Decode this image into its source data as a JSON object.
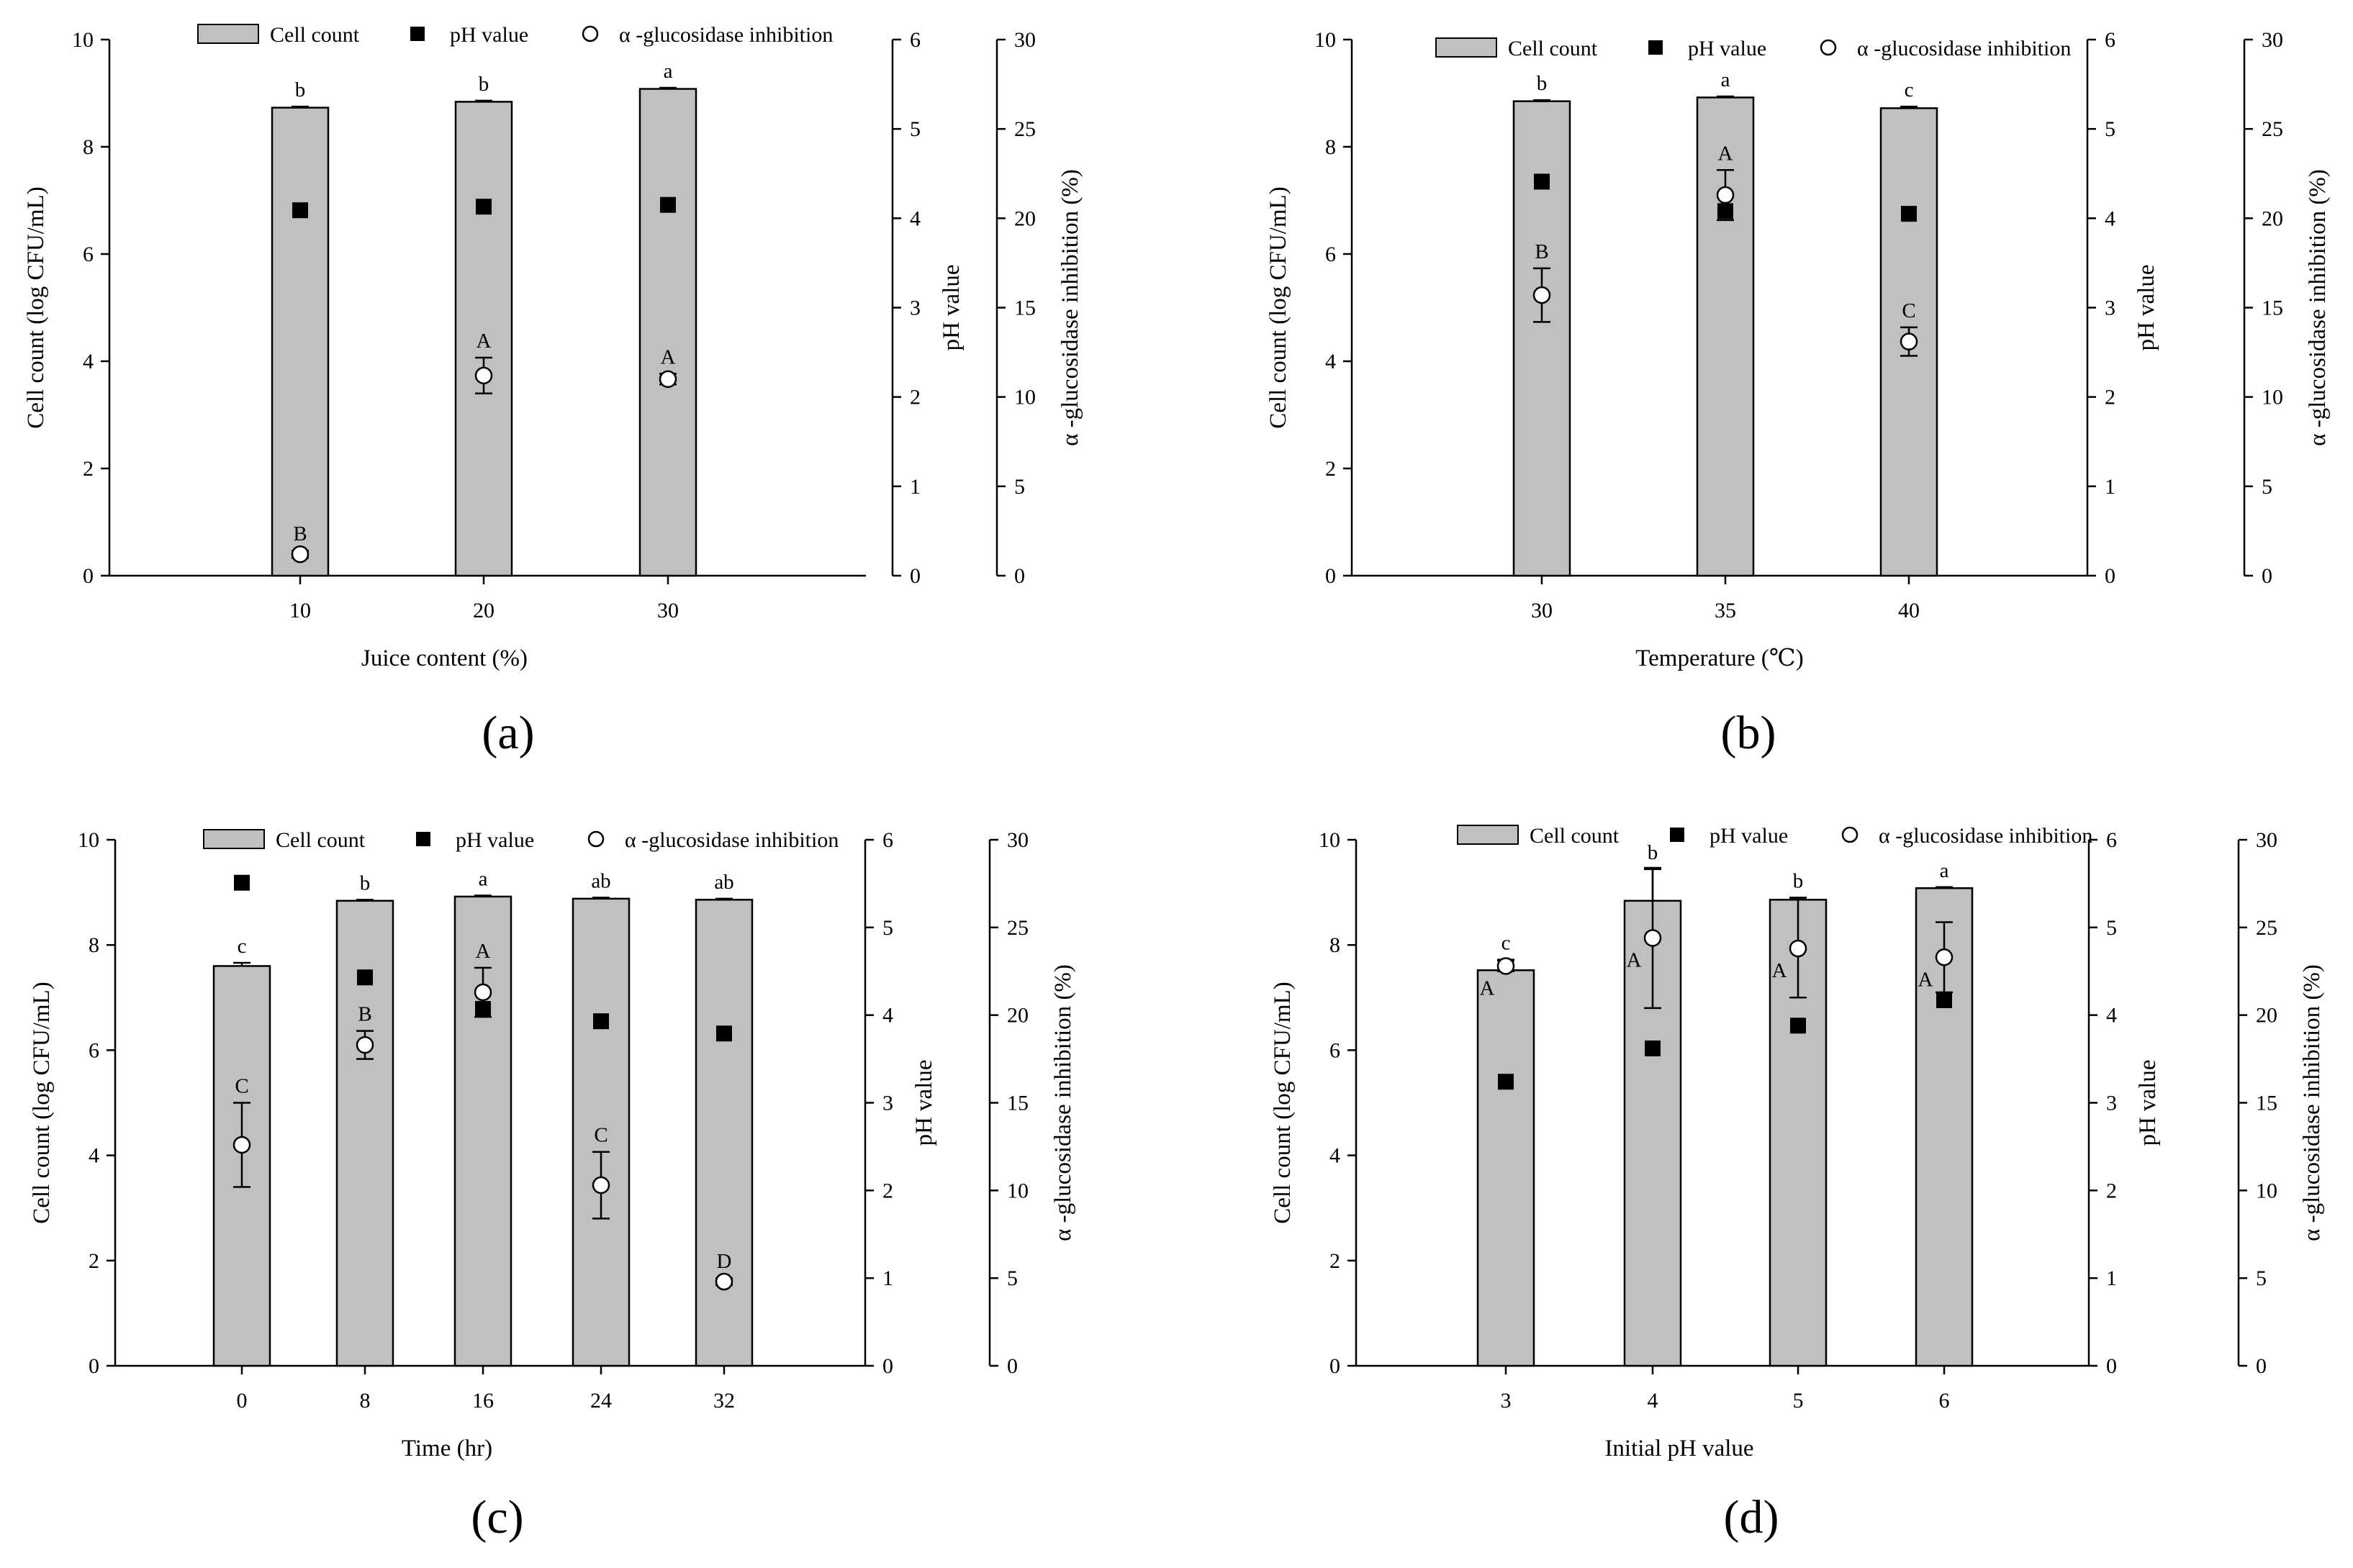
{
  "figure": {
    "legend": {
      "bar": "Cell count",
      "ph": "pH value",
      "inhibition": "α -glucosidase inhibition"
    },
    "colors": {
      "bar_fill": "#c0c0c0",
      "bar_stroke": "#000000",
      "ph_marker": "#000000",
      "inhibition_marker_fill": "#ffffff"
    }
  },
  "chart_data": [
    {
      "type": "bar",
      "panel": "(a)",
      "xlabel": "Juice content (%)",
      "ylabel_left": "Cell count (log CFU/mL)",
      "ylabel_right_inner": "pH value",
      "ylabel_right_outer": "α -glucosidase inhibition (%)",
      "categories": [
        "10",
        "20",
        "30"
      ],
      "ylim_left": [
        0,
        10
      ],
      "yticks_left": [
        "0",
        "2",
        "4",
        "6",
        "8",
        "10"
      ],
      "ylim_ph": [
        0,
        6
      ],
      "yticks_ph": [
        "0",
        "1",
        "2",
        "3",
        "4",
        "5",
        "6"
      ],
      "ylim_inhibition": [
        0,
        30
      ],
      "yticks_inhibition": [
        "0",
        "5",
        "10",
        "15",
        "20",
        "25",
        "30"
      ],
      "series": [
        {
          "name": "Cell count",
          "kind": "bar",
          "axis": "left",
          "values": [
            8.73,
            8.84,
            9.08
          ],
          "errors": [
            0.02,
            0.02,
            0.02
          ],
          "labels": [
            "b",
            "b",
            "a"
          ]
        },
        {
          "name": "pH value",
          "kind": "square",
          "axis": "ph",
          "values": [
            4.09,
            4.13,
            4.15
          ],
          "errors": [
            0.02,
            0.02,
            0.02
          ]
        },
        {
          "name": "α -glucosidase inhibition",
          "kind": "circle",
          "axis": "inhibition",
          "values": [
            1.2,
            11.2,
            11.0
          ],
          "errors": [
            0.2,
            1.0,
            0.3
          ],
          "labels": [
            "B",
            "A",
            "A"
          ]
        }
      ]
    },
    {
      "type": "bar",
      "panel": "(b)",
      "xlabel": "Temperature (℃)",
      "ylabel_left": "Cell count (log CFU/mL)",
      "ylabel_right_inner": "pH value",
      "ylabel_right_outer": "α -glucosidase inhibition (%)",
      "categories": [
        "30",
        "35",
        "40"
      ],
      "ylim_left": [
        0,
        10
      ],
      "yticks_left": [
        "0",
        "2",
        "4",
        "6",
        "8",
        "10"
      ],
      "ylim_ph": [
        0,
        6
      ],
      "yticks_ph": [
        "0",
        "1",
        "2",
        "3",
        "4",
        "5",
        "6"
      ],
      "ylim_inhibition": [
        0,
        30
      ],
      "yticks_inhibition": [
        "0",
        "5",
        "10",
        "15",
        "20",
        "25",
        "30"
      ],
      "series": [
        {
          "name": "Cell count",
          "kind": "bar",
          "axis": "left",
          "values": [
            8.85,
            8.92,
            8.72
          ],
          "errors": [
            0.02,
            0.02,
            0.03
          ],
          "labels": [
            "b",
            "a",
            "c"
          ]
        },
        {
          "name": "pH value",
          "kind": "square",
          "axis": "ph",
          "values": [
            4.41,
            4.08,
            4.05
          ],
          "errors": [
            0.02,
            0.06,
            0.02
          ]
        },
        {
          "name": "α -glucosidase inhibition",
          "kind": "circle",
          "axis": "inhibition",
          "values": [
            15.7,
            21.3,
            13.1
          ],
          "errors": [
            1.5,
            1.4,
            0.8
          ],
          "labels": [
            "B",
            "A",
            "C"
          ]
        }
      ]
    },
    {
      "type": "bar",
      "panel": "(c)",
      "xlabel": "Time (hr)",
      "ylabel_left": "Cell count (log CFU/mL)",
      "ylabel_right_inner": "pH value",
      "ylabel_right_outer": "α -glucosidase inhibition (%)",
      "categories": [
        "0",
        "8",
        "16",
        "24",
        "32"
      ],
      "ylim_left": [
        0,
        10
      ],
      "yticks_left": [
        "0",
        "2",
        "4",
        "6",
        "8",
        "10"
      ],
      "ylim_ph": [
        0,
        6
      ],
      "yticks_ph": [
        "0",
        "1",
        "2",
        "3",
        "4",
        "5",
        "6"
      ],
      "ylim_inhibition": [
        0,
        30
      ],
      "yticks_inhibition": [
        "0",
        "5",
        "10",
        "15",
        "20",
        "25",
        "30"
      ],
      "series": [
        {
          "name": "Cell count",
          "kind": "bar",
          "axis": "left",
          "values": [
            7.6,
            8.84,
            8.92,
            8.88,
            8.86
          ],
          "errors": [
            0.06,
            0.02,
            0.02,
            0.02,
            0.02
          ],
          "labels": [
            "c",
            "b",
            "a",
            "ab",
            "ab"
          ]
        },
        {
          "name": "pH value",
          "kind": "square",
          "axis": "ph",
          "values": [
            5.51,
            4.43,
            4.07,
            3.93,
            3.79
          ],
          "errors": [
            0.02,
            0.02,
            0.05,
            0.02,
            0.02
          ]
        },
        {
          "name": "α -glucosidase inhibition",
          "kind": "circle",
          "axis": "inhibition",
          "values": [
            12.6,
            18.3,
            21.3,
            10.3,
            4.8
          ],
          "errors": [
            2.4,
            0.8,
            1.4,
            1.9,
            0.2
          ],
          "labels": [
            "C",
            "B",
            "A",
            "C",
            "D"
          ]
        }
      ]
    },
    {
      "type": "bar",
      "panel": "(d)",
      "xlabel": "Initial pH value",
      "ylabel_left": "Cell count (log CFU/mL)",
      "ylabel_right_inner": "pH value",
      "ylabel_right_outer": "α -glucosidase inhibition (%)",
      "categories": [
        "3",
        "4",
        "5",
        "6"
      ],
      "ylim_left": [
        0,
        10
      ],
      "yticks_left": [
        "0",
        "2",
        "4",
        "6",
        "8",
        "10"
      ],
      "ylim_ph": [
        0,
        6
      ],
      "yticks_ph": [
        "0",
        "1",
        "2",
        "3",
        "4",
        "5",
        "6"
      ],
      "ylim_inhibition": [
        0,
        30
      ],
      "yticks_inhibition": [
        "0",
        "5",
        "10",
        "15",
        "20",
        "25",
        "30"
      ],
      "series": [
        {
          "name": "Cell count",
          "kind": "bar",
          "axis": "left",
          "values": [
            7.52,
            8.84,
            8.86,
            9.08
          ],
          "errors": [
            0.2,
            0.6,
            0.04,
            0.02
          ],
          "labels": [
            "c",
            "b",
            "b",
            "a"
          ]
        },
        {
          "name": "pH value",
          "kind": "square",
          "axis": "ph",
          "values": [
            3.24,
            3.62,
            3.88,
            4.17
          ],
          "errors": [
            0.02,
            0.02,
            0.02,
            0.05
          ]
        },
        {
          "name": "α -glucosidase inhibition",
          "kind": "circle",
          "axis": "inhibition",
          "values": [
            22.8,
            24.4,
            23.8,
            23.3
          ],
          "errors": [
            0.3,
            4.0,
            2.8,
            2.0
          ],
          "labels": [
            "A",
            "A",
            "A",
            "A"
          ]
        }
      ]
    }
  ]
}
